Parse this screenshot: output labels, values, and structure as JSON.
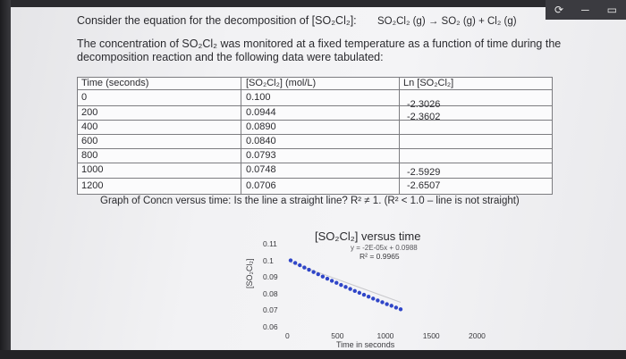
{
  "window": {
    "controls": [
      "⟳",
      "─",
      "▭"
    ]
  },
  "intro": {
    "line1": "Consider the equation for the decomposition of [SO₂Cl₂]:",
    "equation": "SO₂Cl₂ (g) → SO₂ (g) + Cl₂ (g)",
    "line2": "The concentration of SO₂Cl₂ was monitored at a fixed temperature as a function of time during the",
    "line3": "decomposition reaction and the following data were tabulated:"
  },
  "table": {
    "headers": [
      "Time (seconds)",
      "[SO₂Cl₂] (mol/L)",
      "Ln [SO₂Cl₂]"
    ],
    "rows": [
      [
        "0",
        "0.100",
        "-2.3026"
      ],
      [
        "200",
        "0.0944",
        "-2.3602"
      ],
      [
        "400",
        "0.0890",
        ""
      ],
      [
        "600",
        "0.0840",
        ""
      ],
      [
        "800",
        "0.0793",
        ""
      ],
      [
        "1000",
        "0.0748",
        "-2.5929"
      ],
      [
        "1200",
        "0.0706",
        "-2.6507"
      ]
    ]
  },
  "caption": "Graph of Concn versus time: Is the line a straight line? R² ≠ 1. (R² < 1.0 – line is not straight)",
  "chart_data": {
    "type": "scatter",
    "title": "[SO₂Cl₂] versus time",
    "equation": "y = -2E-05x + 0.0988",
    "r_squared": "R² = 0.9965",
    "xlabel": "Time in seconds",
    "ylabel": "[SO₂Cl₂]",
    "xlim": [
      0,
      2000
    ],
    "ylim": [
      0.06,
      0.11
    ],
    "x_ticks": [
      "0",
      "500",
      "1000",
      "1500",
      "2000"
    ],
    "y_ticks": [
      "0.11",
      "0.1",
      "0.09",
      "0.08",
      "0.07",
      "0.06"
    ],
    "marker_color": "#2f45c8",
    "trendline_color": "#c8c8cc",
    "points": [
      {
        "x": 0,
        "y": 0.1
      },
      {
        "x": 50,
        "y": 0.0985
      },
      {
        "x": 100,
        "y": 0.0971
      },
      {
        "x": 150,
        "y": 0.0957
      },
      {
        "x": 200,
        "y": 0.0944
      },
      {
        "x": 250,
        "y": 0.093
      },
      {
        "x": 300,
        "y": 0.0917
      },
      {
        "x": 350,
        "y": 0.0903
      },
      {
        "x": 400,
        "y": 0.089
      },
      {
        "x": 450,
        "y": 0.0877
      },
      {
        "x": 500,
        "y": 0.0865
      },
      {
        "x": 550,
        "y": 0.0852
      },
      {
        "x": 600,
        "y": 0.084
      },
      {
        "x": 650,
        "y": 0.0828
      },
      {
        "x": 700,
        "y": 0.0816
      },
      {
        "x": 750,
        "y": 0.0805
      },
      {
        "x": 800,
        "y": 0.0793
      },
      {
        "x": 850,
        "y": 0.0782
      },
      {
        "x": 900,
        "y": 0.077
      },
      {
        "x": 950,
        "y": 0.0759
      },
      {
        "x": 1000,
        "y": 0.0748
      },
      {
        "x": 1050,
        "y": 0.0737
      },
      {
        "x": 1100,
        "y": 0.0727
      },
      {
        "x": 1150,
        "y": 0.0716
      },
      {
        "x": 1200,
        "y": 0.0706
      }
    ]
  }
}
